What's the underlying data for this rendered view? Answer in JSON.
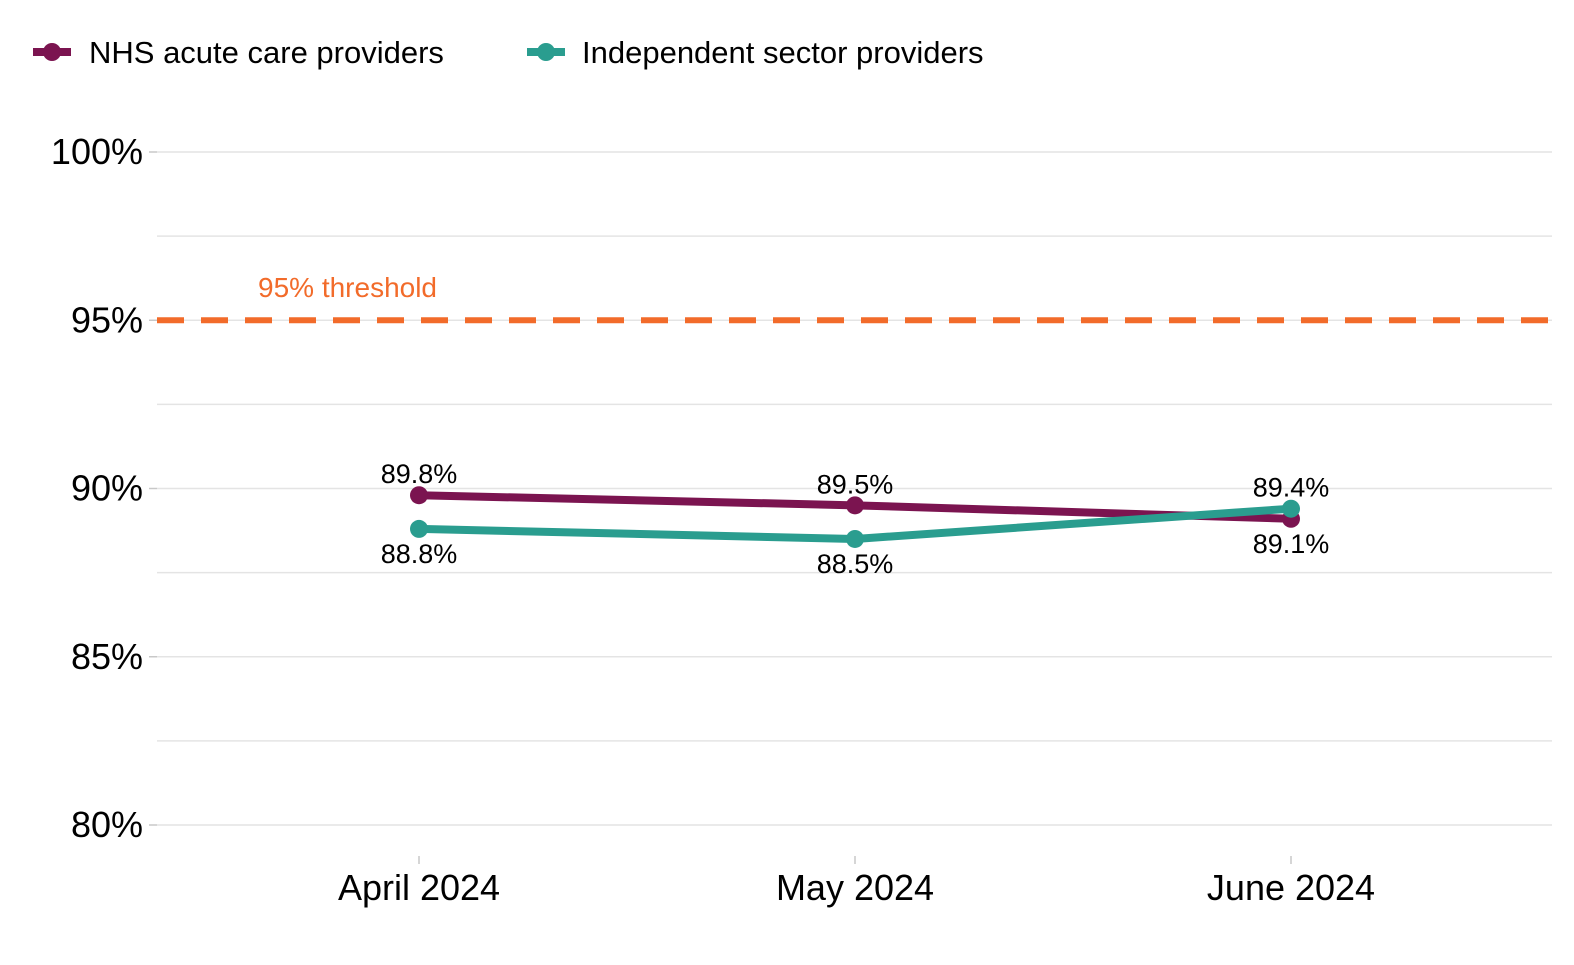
{
  "chart_data": {
    "type": "line",
    "title": "",
    "xlabel": "",
    "ylabel": "",
    "categories": [
      "April 2024",
      "May 2024",
      "June 2024"
    ],
    "ylim": [
      79,
      100
    ],
    "yticks": [
      80,
      85,
      90,
      95,
      100
    ],
    "ytick_labels": [
      "80%",
      "85%",
      "90%",
      "95%",
      "100%"
    ],
    "grid": "horizontal",
    "legend": "top-left",
    "series": [
      {
        "name": "NHS acute care providers",
        "color": "#7b1450",
        "values": [
          89.8,
          89.5,
          89.1
        ],
        "labels": [
          "89.8%",
          "89.5%",
          "89.1%"
        ]
      },
      {
        "name": "Independent sector providers",
        "color": "#2a9d8f",
        "values": [
          88.8,
          88.5,
          89.4
        ],
        "labels": [
          "88.8%",
          "88.5%",
          "89.4%"
        ]
      }
    ],
    "reference_line": {
      "value": 95,
      "label": "95% threshold",
      "color": "#f26b2a",
      "style": "dashed"
    }
  }
}
